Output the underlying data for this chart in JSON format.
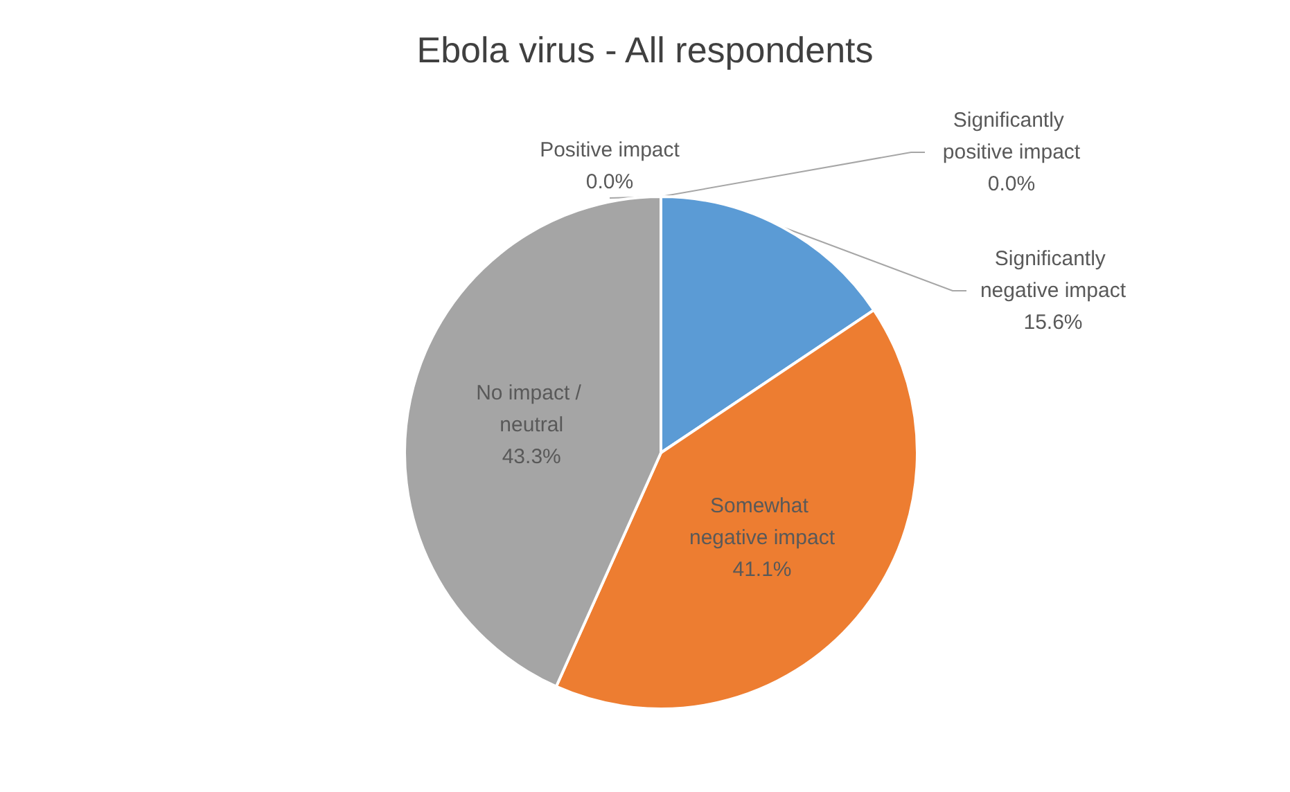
{
  "chart_data": {
    "type": "pie",
    "title": "Ebola virus - All respondents",
    "categories": [
      "Significantly negative impact",
      "Somewhat negative impact",
      "No impact / neutral",
      "Positive impact",
      "Significantly positive impact"
    ],
    "values": [
      15.6,
      41.1,
      43.3,
      0.0,
      0.0
    ],
    "colors": [
      "#5b9bd5",
      "#ed7d31",
      "#a5a5a5",
      "#ffc000",
      "#4472c4"
    ],
    "value_labels": [
      "15.6%",
      "41.1%",
      "43.3%",
      "0.0%",
      "0.0%"
    ],
    "legend": false
  }
}
